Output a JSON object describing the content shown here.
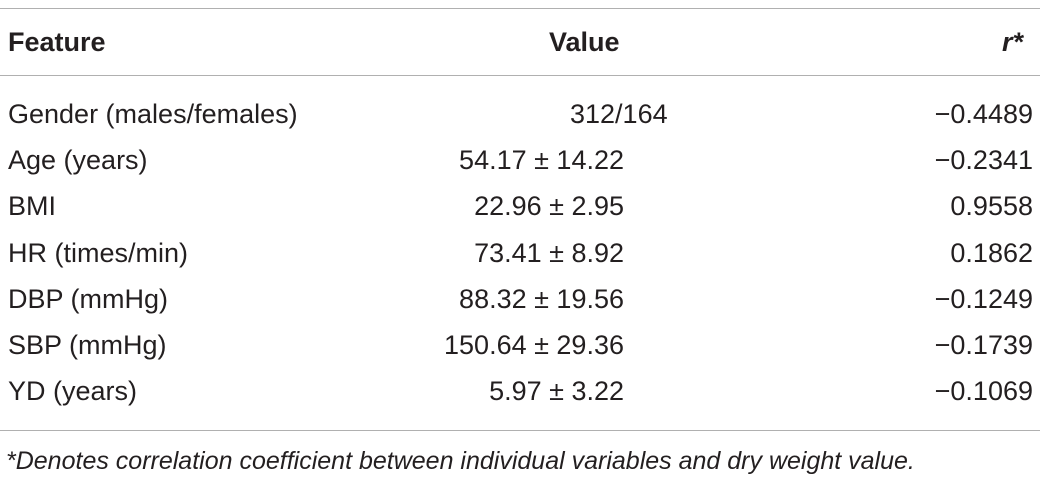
{
  "table": {
    "headers": {
      "feature": "Feature",
      "value": "Value",
      "r": "r*"
    },
    "rows": [
      {
        "feature": "Gender (males/females)",
        "value": "312/164",
        "r": "−0.4489"
      },
      {
        "feature": "Age (years)",
        "value": "54.17 ± 14.22",
        "r": "−0.2341"
      },
      {
        "feature": "BMI",
        "value": "22.96 ± 2.95",
        "r": "0.9558"
      },
      {
        "feature": "HR (times/min)",
        "value": "73.41 ± 8.92",
        "r": "0.1862"
      },
      {
        "feature": "DBP (mmHg)",
        "value": "88.32 ± 19.56",
        "r": "−0.1249"
      },
      {
        "feature": "SBP (mmHg)",
        "value": "150.64 ± 29.36",
        "r": "−0.1739"
      },
      {
        "feature": "YD (years)",
        "value": "5.97 ± 3.22",
        "r": "−0.1069"
      }
    ],
    "footnote": "*Denotes correlation coefficient between individual variables and dry weight value."
  }
}
